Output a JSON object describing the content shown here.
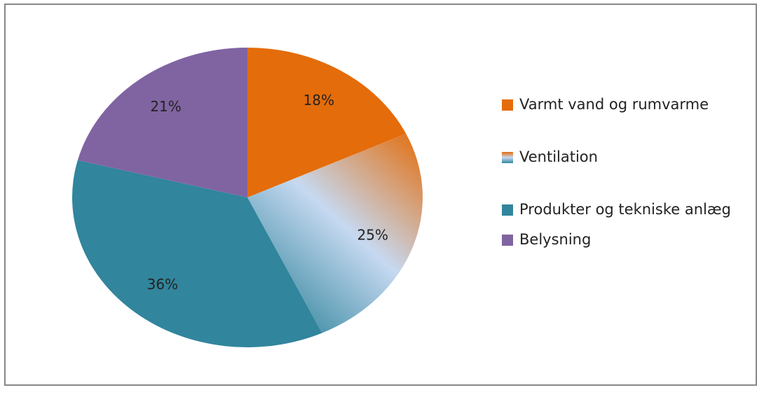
{
  "chart_data": {
    "type": "pie",
    "categories": [
      "Varmt vand og rumvarme",
      "Ventilation",
      "Produkter og tekniske anlæg",
      "Belysning"
    ],
    "values": [
      18,
      25,
      36,
      21
    ],
    "value_labels": [
      "18%",
      "25%",
      "36%",
      "21%"
    ],
    "colors": [
      "#E46C0A",
      [
        "#E46C0A",
        "#C6D9F1",
        "#31859C"
      ],
      "#31859C",
      "#8064A2"
    ],
    "legend": "right"
  }
}
